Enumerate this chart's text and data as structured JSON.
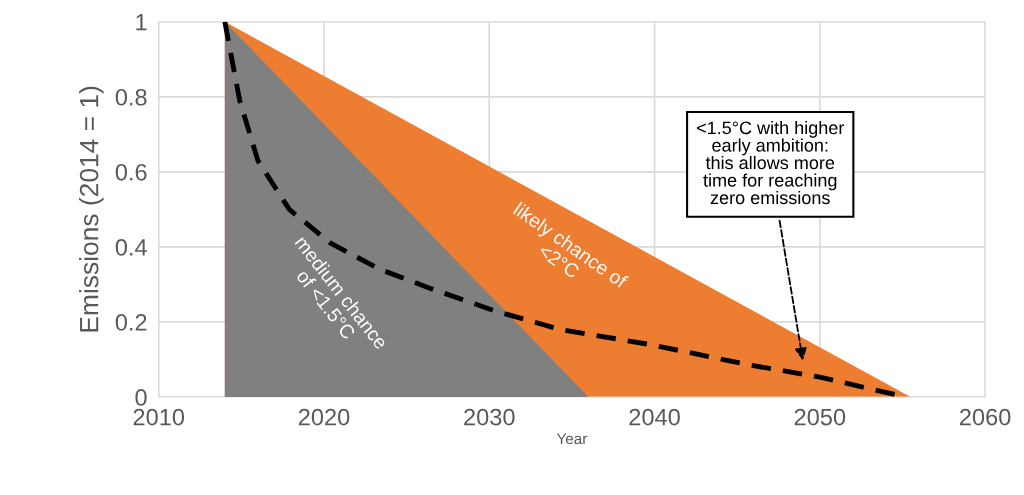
{
  "chart_data": {
    "type": "area",
    "xlabel": "Year",
    "ylabel": "Emissions (2014 = 1)",
    "xlim": [
      2010,
      2060
    ],
    "xticks": [
      2010,
      2020,
      2030,
      2040,
      2050,
      2060
    ],
    "ylim": [
      0,
      1
    ],
    "yticks": [
      0,
      0.2,
      0.4,
      0.6,
      0.8,
      1
    ],
    "grid": true,
    "legend": false,
    "series": [
      {
        "color": "#ed7d31",
        "x": [
          2014,
          2055.5
        ],
        "values": [
          1,
          0
        ]
      },
      {
        "color": "#808080",
        "x": [
          2014,
          2036
        ],
        "values": [
          1,
          0
        ]
      },
      {
        "type": "line",
        "color": "#000000",
        "line_style": "dashed",
        "x": [
          2014,
          2014.9,
          2016.0,
          2017.9,
          2020.4,
          2023.4,
          2026.4,
          2030.3,
          2034.3,
          2039.7,
          2045.8,
          2050.0,
          2055.2
        ],
        "values": [
          1,
          0.79,
          0.63,
          0.5,
          0.41,
          0.34,
          0.29,
          0.23,
          0.18,
          0.14,
          0.085,
          0.053,
          0
        ]
      }
    ],
    "annotations": [
      "likely chance of\n<2°C",
      "medium chance\nof <1.5°C",
      "<1.5°C with higher\nearly ambition:\nthis allows more\ntime for reaching\nzero emissions"
    ]
  }
}
